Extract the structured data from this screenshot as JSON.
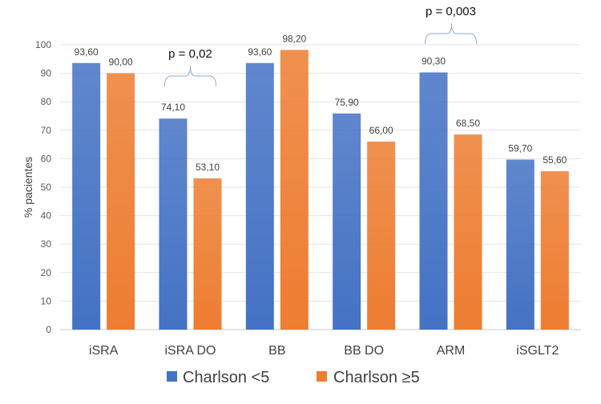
{
  "chart_data": {
    "type": "bar",
    "categories": [
      "iSRA",
      "iSRA DO",
      "BB",
      "BB DO",
      "ARM",
      "iSGLT2"
    ],
    "series": [
      {
        "name": "Charlson <5",
        "values": [
          93.6,
          74.1,
          93.6,
          75.9,
          90.3,
          59.7
        ],
        "labels": [
          "93,60",
          "74,10",
          "93,60",
          "75,90",
          "90,30",
          "59,70"
        ],
        "color": "#4472C4"
      },
      {
        "name": "Charlson ≥5",
        "values": [
          90.0,
          53.1,
          98.2,
          66.0,
          68.5,
          55.6
        ],
        "labels": [
          "90,00",
          "53,10",
          "98,20",
          "66,00",
          "68,50",
          "55,60"
        ],
        "color": "#ED7D31"
      }
    ],
    "ylabel": "% pacientes",
    "ylim": [
      0,
      100
    ],
    "yticks": [
      "0",
      "10",
      "20",
      "30",
      "40",
      "50",
      "60",
      "70",
      "80",
      "90",
      "100"
    ],
    "grid": true,
    "legend": "bottom",
    "annotations": [
      {
        "text": "p = 0,02",
        "category": "iSRA DO"
      },
      {
        "text": "p = 0,003",
        "category": "ARM"
      }
    ]
  }
}
